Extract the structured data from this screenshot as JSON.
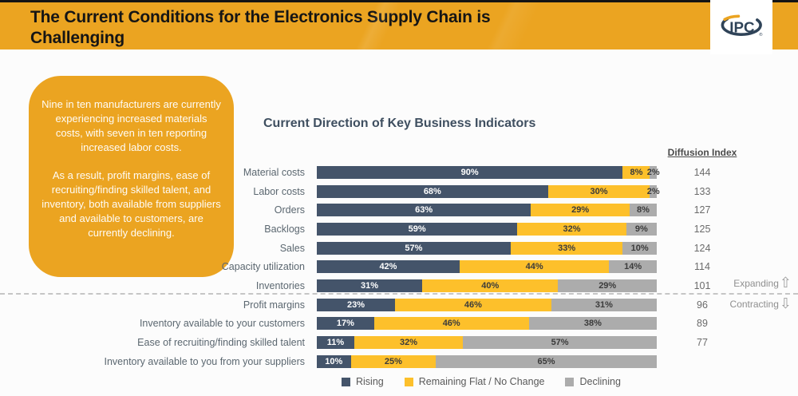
{
  "header": {
    "title": "The Current Conditions for the Electronics Supply Chain is Challenging",
    "logo_text": "IPC",
    "logo_registered_mark": "®"
  },
  "callout": {
    "paragraph1": "Nine in ten manufacturers are currently experiencing increased materials costs, with seven in ten reporting increased labor costs.",
    "paragraph2": "As a result, profit margins, ease of recruiting/finding skilled talent, and inventory, both available from suppliers and available to customers, are currently declining."
  },
  "chart": {
    "title": "Current Direction of Key Business Indicators",
    "diffusion_header": "Diffusion Index",
    "annotations": {
      "expanding": "Expanding",
      "contracting": "Contracting",
      "up_arrow": "⇧",
      "down_arrow": "⇩"
    }
  },
  "colors": {
    "accent_orange": "#EBA421",
    "rising_navy": "#44546A",
    "flat_yellow": "#FDC02B",
    "declining_gray": "#ACACAC",
    "segment_text_light": "#FFFFFF",
    "segment_text_dark": "#3B3B3B"
  },
  "chart_data": {
    "type": "bar",
    "orientation": "horizontal_stacked",
    "title": "Current Direction of Key Business Indicators",
    "xlabel": "",
    "ylabel": "",
    "xlim": [
      0,
      100
    ],
    "grid": false,
    "legend_position": "bottom",
    "categories": [
      "Material costs",
      "Labor costs",
      "Orders",
      "Backlogs",
      "Sales",
      "Capacity utilization",
      "Inventories",
      "Profit margins",
      "Inventory available to your customers",
      "Ease of recruiting/finding skilled talent",
      "Inventory available to you from your suppliers"
    ],
    "series": [
      {
        "name": "Rising",
        "color": "#44546A",
        "values": [
          90,
          68,
          63,
          59,
          57,
          42,
          31,
          23,
          17,
          11,
          10
        ]
      },
      {
        "name": "Remaining Flat / No Change",
        "color": "#FDC02B",
        "values": [
          8,
          30,
          29,
          32,
          33,
          44,
          40,
          46,
          46,
          32,
          25
        ]
      },
      {
        "name": "Declining",
        "color": "#ACACAC",
        "values": [
          2,
          2,
          8,
          9,
          10,
          14,
          29,
          31,
          38,
          57,
          65
        ]
      }
    ],
    "diffusion_index": [
      144,
      133,
      127,
      125,
      124,
      114,
      101,
      96,
      89,
      77,
      null
    ],
    "threshold_note": "Dashed line separates Expanding (index > 100) from Contracting (index < 100)"
  }
}
